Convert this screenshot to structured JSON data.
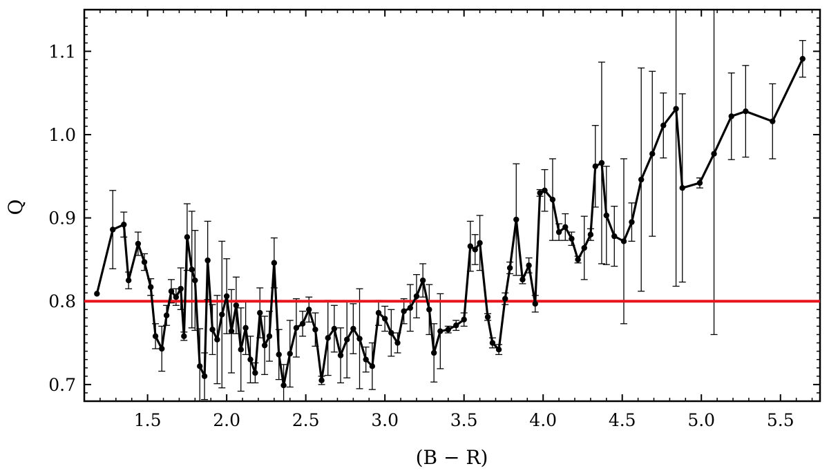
{
  "chart_data": {
    "type": "line",
    "xlabel": "(B − R)",
    "ylabel": "Q",
    "xlim": [
      1.1,
      5.75
    ],
    "ylim": [
      0.68,
      1.15
    ],
    "xticks": [
      {
        "value": 1.5,
        "label": "1.5"
      },
      {
        "value": 2.0,
        "label": "2.0"
      },
      {
        "value": 2.5,
        "label": "2.5"
      },
      {
        "value": 3.0,
        "label": "3.0"
      },
      {
        "value": 3.5,
        "label": "3.5"
      },
      {
        "value": 4.0,
        "label": "4.0"
      },
      {
        "value": 4.5,
        "label": "4.5"
      },
      {
        "value": 5.0,
        "label": "5.0"
      },
      {
        "value": 5.5,
        "label": "5.5"
      }
    ],
    "yticks": [
      {
        "value": 0.7,
        "label": "0.7"
      },
      {
        "value": 0.8,
        "label": "0.8"
      },
      {
        "value": 0.9,
        "label": "0.9"
      },
      {
        "value": 1.0,
        "label": "1.0"
      },
      {
        "value": 1.1,
        "label": "1.1"
      }
    ],
    "reference_line": {
      "y": 0.8,
      "color": "#e8141e"
    },
    "series_color": "#000000",
    "grid": false,
    "series": [
      {
        "x": [
          1.18,
          1.28,
          1.35,
          1.38,
          1.44,
          1.48,
          1.52,
          1.55,
          1.59,
          1.62,
          1.65,
          1.68,
          1.71,
          1.73,
          1.75,
          1.78,
          1.8,
          1.83,
          1.86,
          1.88,
          1.91,
          1.94,
          1.97,
          2.0,
          2.03,
          2.06,
          2.09,
          2.12,
          2.15,
          2.18,
          2.21,
          2.24,
          2.27,
          2.3,
          2.33,
          2.36,
          2.4,
          2.44,
          2.48,
          2.52,
          2.56,
          2.6,
          2.64,
          2.68,
          2.72,
          2.76,
          2.8,
          2.84,
          2.88,
          2.92,
          2.96,
          3.0,
          3.04,
          3.08,
          3.12,
          3.16,
          3.2,
          3.24,
          3.28,
          3.31,
          3.35,
          3.4,
          3.45,
          3.5,
          3.54,
          3.57,
          3.6,
          3.65,
          3.68,
          3.72,
          3.76,
          3.79,
          3.83,
          3.87,
          3.91,
          3.95,
          3.98,
          4.01,
          4.06,
          4.1,
          4.14,
          4.18,
          4.22,
          4.26,
          4.3,
          4.33,
          4.37,
          4.4,
          4.45,
          4.51,
          4.56,
          4.62,
          4.69,
          4.76,
          4.84,
          4.88,
          4.99,
          5.08,
          5.19,
          5.28,
          5.45,
          5.64
        ],
        "y": [
          0.809,
          0.886,
          0.892,
          0.825,
          0.869,
          0.847,
          0.817,
          0.758,
          0.743,
          0.783,
          0.812,
          0.805,
          0.815,
          0.758,
          0.877,
          0.838,
          0.825,
          0.722,
          0.71,
          0.849,
          0.766,
          0.754,
          0.784,
          0.806,
          0.764,
          0.795,
          0.742,
          0.768,
          0.73,
          0.714,
          0.786,
          0.747,
          0.758,
          0.846,
          0.736,
          0.699,
          0.737,
          0.768,
          0.773,
          0.79,
          0.766,
          0.705,
          0.756,
          0.767,
          0.735,
          0.754,
          0.767,
          0.755,
          0.73,
          0.722,
          0.786,
          0.779,
          0.762,
          0.75,
          0.788,
          0.792,
          0.806,
          0.825,
          0.79,
          0.738,
          0.764,
          0.766,
          0.771,
          0.778,
          0.866,
          0.862,
          0.87,
          0.781,
          0.75,
          0.742,
          0.803,
          0.84,
          0.898,
          0.826,
          0.843,
          0.797,
          0.93,
          0.933,
          0.922,
          0.883,
          0.889,
          0.875,
          0.85,
          0.864,
          0.88,
          0.962,
          0.966,
          0.903,
          0.878,
          0.872,
          0.895,
          0.946,
          0.977,
          1.011,
          1.031,
          0.936,
          0.942,
          0.977,
          1.022,
          1.028,
          1.016,
          1.091
        ],
        "err": [
          0.0,
          0.047,
          0.015,
          0.01,
          0.014,
          0.01,
          0.01,
          0.015,
          0.027,
          0.012,
          0.014,
          0.01,
          0.025,
          0.005,
          0.04,
          0.07,
          0.06,
          0.045,
          0.028,
          0.047,
          0.03,
          0.053,
          0.088,
          0.045,
          0.05,
          0.034,
          0.05,
          0.032,
          0.028,
          0.012,
          0.03,
          0.035,
          0.03,
          0.03,
          0.03,
          0.025,
          0.04,
          0.035,
          0.015,
          0.015,
          0.02,
          0.005,
          0.045,
          0.028,
          0.033,
          0.046,
          0.03,
          0.06,
          0.015,
          0.028,
          0.015,
          0.015,
          0.028,
          0.012,
          0.015,
          0.028,
          0.026,
          0.02,
          0.03,
          0.035,
          0.045,
          0.004,
          0.006,
          0.008,
          0.03,
          0.018,
          0.033,
          0.004,
          0.006,
          0.006,
          0.007,
          0.007,
          0.067,
          0.005,
          0.009,
          0.01,
          0.004,
          0.025,
          0.049,
          0.01,
          0.016,
          0.008,
          0.004,
          0.038,
          0.007,
          0.049,
          0.121,
          0.059,
          0.036,
          0.099,
          0.023,
          0.134,
          0.099,
          0.039,
          0.213,
          0.113,
          0.006,
          0.217,
          0.052,
          0.055,
          0.045,
          0.022
        ]
      }
    ]
  }
}
